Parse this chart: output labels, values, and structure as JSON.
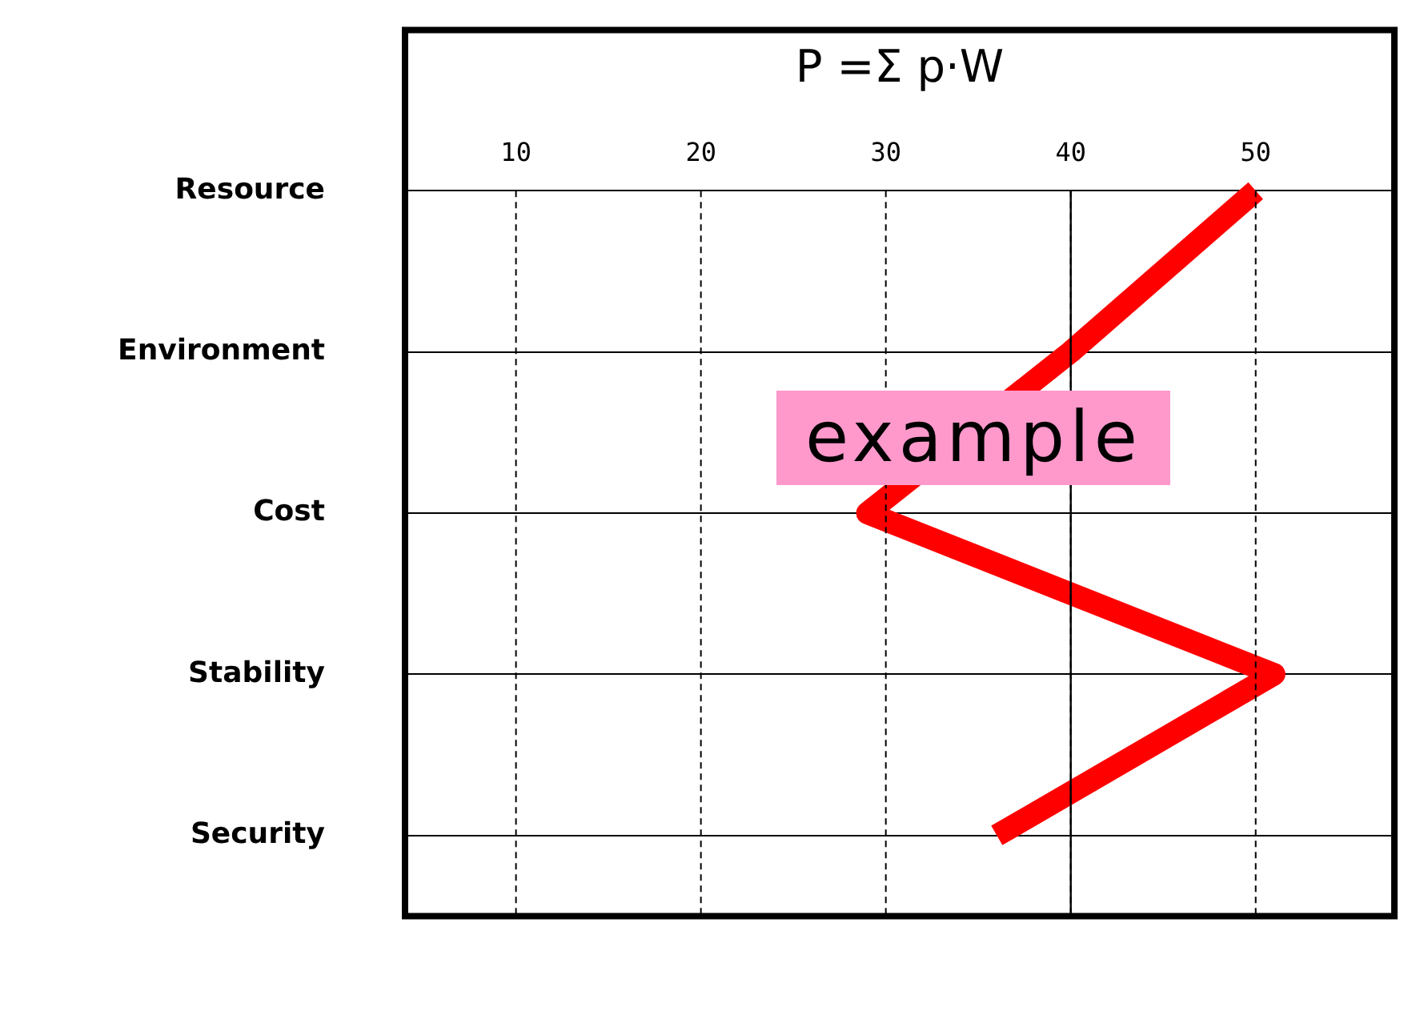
{
  "chart_data": {
    "type": "line",
    "orientation": "horizontal",
    "title": "P =Σ p·W",
    "categories": [
      "Resource",
      "Environment",
      "Cost",
      "Stability",
      "Security"
    ],
    "series": [
      {
        "color": "#ff0000",
        "values": [
          50,
          40,
          29,
          51,
          36
        ]
      }
    ],
    "xlim": [
      4,
      57.5
    ],
    "xticks": [
      10,
      20,
      30,
      40,
      50
    ],
    "ref_lines": [
      {
        "axis": "x",
        "value": 40,
        "color": "#000000",
        "line_style": "solid"
      }
    ],
    "annotations": [
      "example"
    ],
    "grid": true,
    "legend": false,
    "marker": "none",
    "line_style": "solid"
  }
}
